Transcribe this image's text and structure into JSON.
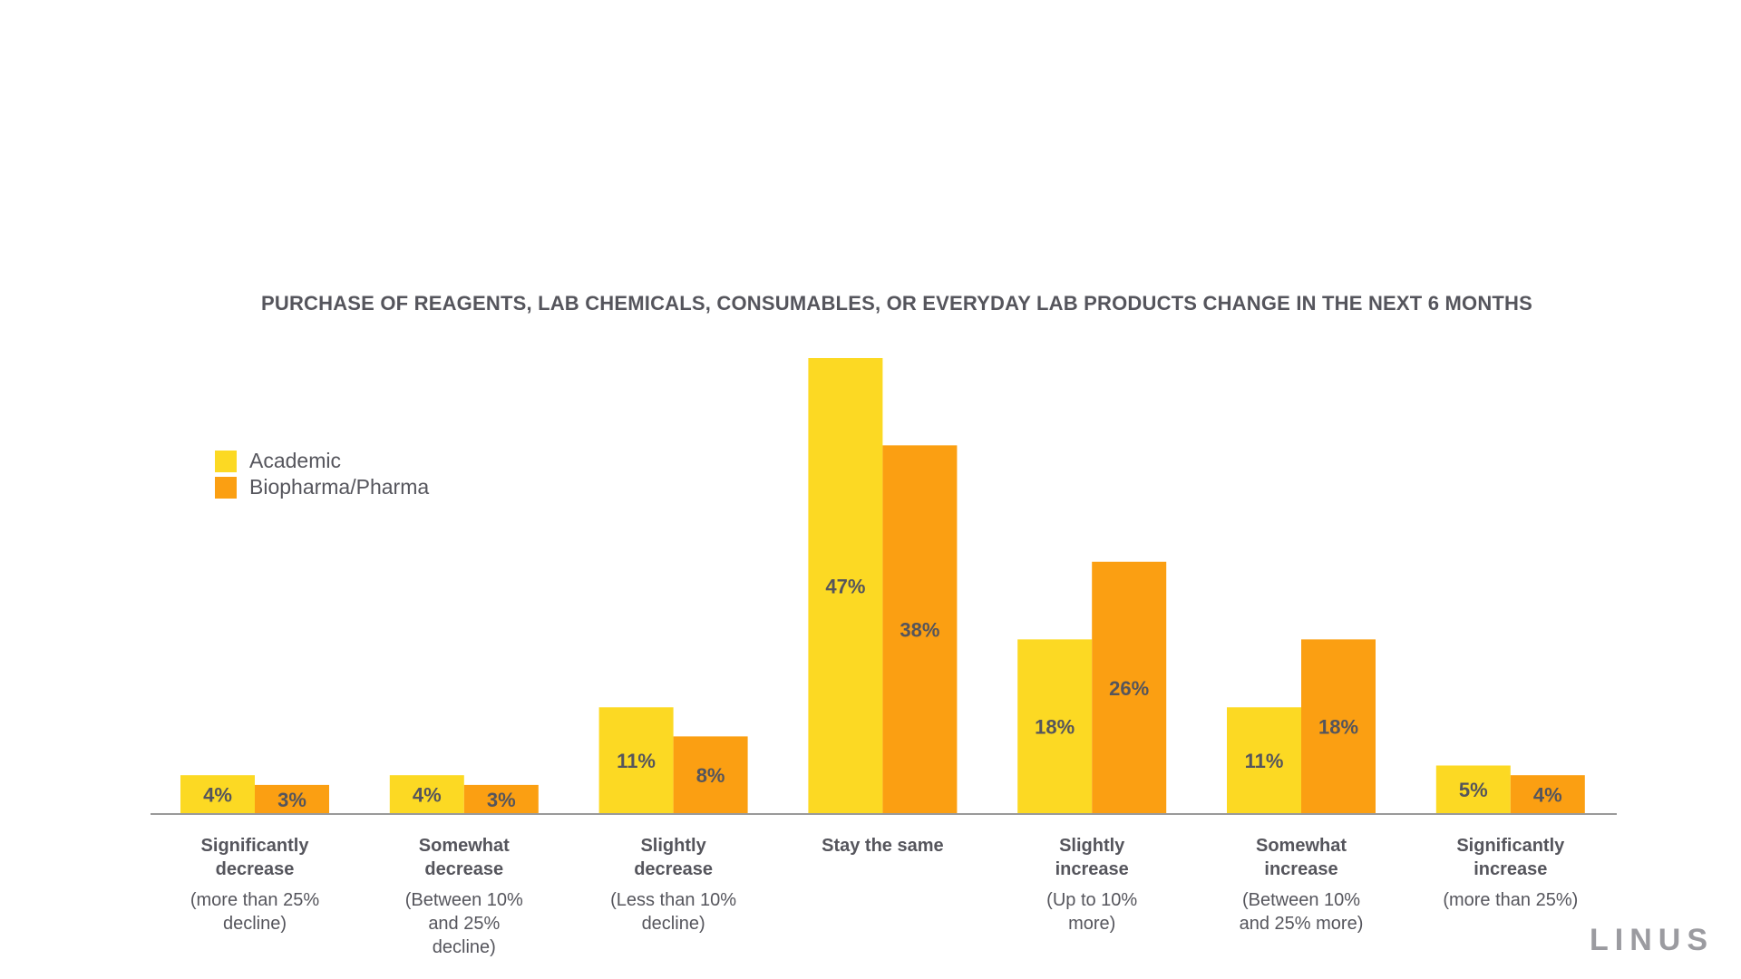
{
  "colors": {
    "academic": "#fcd923",
    "pharma": "#fb9f12",
    "axis": "#9a9a9a",
    "text": "#55555c"
  },
  "chart_data": {
    "type": "bar",
    "title": "PURCHASE OF REAGENTS, LAB CHEMICALS, CONSUMABLES, OR EVERYDAY LAB PRODUCTS CHANGE IN THE NEXT 6 MONTHS",
    "categories": [
      {
        "title": "Significantly decrease",
        "title_lines": [
          "Significantly",
          "decrease"
        ],
        "sub_lines": [
          "(more than 25%",
          "decline)"
        ]
      },
      {
        "title": "Somewhat decrease",
        "title_lines": [
          "Somewhat",
          "decrease"
        ],
        "sub_lines": [
          "(Between 10%",
          "and 25%",
          "decline)"
        ]
      },
      {
        "title": "Slightly decrease",
        "title_lines": [
          "Slightly",
          "decrease"
        ],
        "sub_lines": [
          "(Less than 10%",
          "decline)"
        ]
      },
      {
        "title": "Stay the same",
        "title_lines": [
          "Stay the same"
        ],
        "sub_lines": []
      },
      {
        "title": "Slightly increase",
        "title_lines": [
          "Slightly",
          "increase"
        ],
        "sub_lines": [
          "(Up to 10%",
          "more)"
        ]
      },
      {
        "title": "Somewhat increase",
        "title_lines": [
          "Somewhat",
          "increase"
        ],
        "sub_lines": [
          "(Between 10%",
          "and 25% more)"
        ]
      },
      {
        "title": "Significantly increase",
        "title_lines": [
          "Significantly",
          "increase"
        ],
        "sub_lines": [
          "(more than 25%)"
        ]
      }
    ],
    "series": [
      {
        "name": "Academic",
        "color": "#fcd923",
        "values": [
          4,
          4,
          11,
          47,
          18,
          11,
          5
        ],
        "labels": [
          "4%",
          "4%",
          "11%",
          "47%",
          "18%",
          "11%",
          "5%"
        ]
      },
      {
        "name": "Biopharma/Pharma",
        "color": "#fb9f12",
        "values": [
          3,
          3,
          8,
          38,
          26,
          18,
          4
        ],
        "labels": [
          "3%",
          "3%",
          "8%",
          "38%",
          "26%",
          "18%",
          "4%"
        ]
      }
    ],
    "ylim": [
      0,
      47
    ],
    "grid": false,
    "legend_position": "left"
  },
  "legend": {
    "academic": "Academic",
    "pharma": "Biopharma/Pharma"
  },
  "brand": {
    "logo_text": "LINUS"
  }
}
